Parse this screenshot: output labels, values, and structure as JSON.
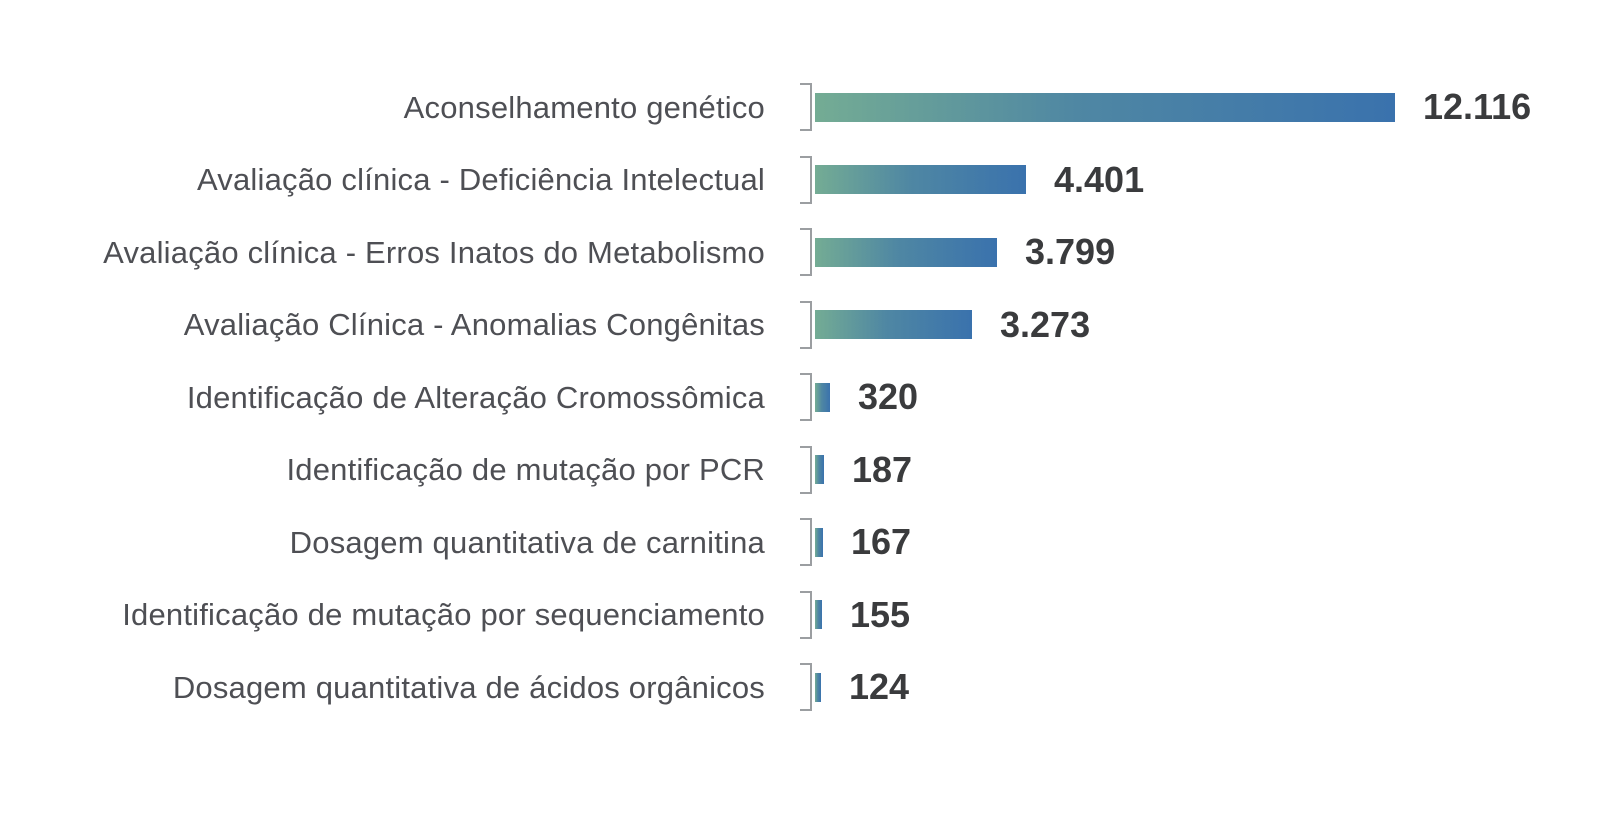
{
  "chart_data": {
    "type": "bar",
    "orientation": "horizontal",
    "title": "",
    "xlabel": "",
    "ylabel": "",
    "grid": false,
    "legend": false,
    "xlim": [
      0,
      12116
    ],
    "categories": [
      "Aconselhamento genético",
      "Avaliação clínica - Deficiência Intelectual",
      "Avaliação clínica - Erros Inatos do Metabolismo",
      "Avaliação Clínica - Anomalias Congênitas",
      "Identificação de Alteração Cromossômica",
      "Identificação de mutação por PCR",
      "Dosagem quantitativa de carnitina",
      "Identificação de mutação por sequenciamento",
      "Dosagem quantitativa de ácidos orgânicos"
    ],
    "values": [
      12116,
      4401,
      3799,
      3273,
      320,
      187,
      167,
      155,
      124
    ],
    "value_labels": [
      "12.116",
      "4.401",
      "3.799",
      "3.273",
      "320",
      "187",
      "167",
      "155",
      "124"
    ],
    "colors": {
      "bar_gradient": [
        "#74ac94",
        "#4f87a3",
        "#3a72ad"
      ],
      "value_text": "#3a3b3d",
      "label_text": "#4e4f54",
      "bracket": "#9b9ea1",
      "background": "#ffffff"
    }
  }
}
